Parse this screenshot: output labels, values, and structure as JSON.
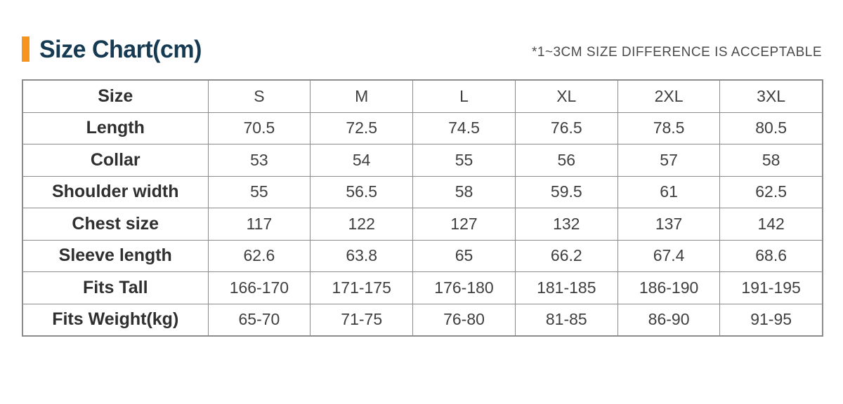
{
  "header": {
    "title": "Size Chart(cm)",
    "disclaimer": "*1~3CM SIZE DIFFERENCE IS ACCEPTABLE"
  },
  "colors": {
    "accent_orange": "#F7941E",
    "title_navy": "#163A52",
    "table_border_gray": "#8C8C8C",
    "body_text": "#3F3F3F"
  },
  "chart_data": {
    "type": "table",
    "title": "Size Chart(cm)",
    "corner_label": "Size",
    "columns": [
      "S",
      "M",
      "L",
      "XL",
      "2XL",
      "3XL"
    ],
    "rows": [
      {
        "label": "Length",
        "values": [
          "70.5",
          "72.5",
          "74.5",
          "76.5",
          "78.5",
          "80.5"
        ]
      },
      {
        "label": "Collar",
        "values": [
          "53",
          "54",
          "55",
          "56",
          "57",
          "58"
        ]
      },
      {
        "label": "Shoulder width",
        "values": [
          "55",
          "56.5",
          "58",
          "59.5",
          "61",
          "62.5"
        ]
      },
      {
        "label": "Chest size",
        "values": [
          "117",
          "122",
          "127",
          "132",
          "137",
          "142"
        ]
      },
      {
        "label": "Sleeve length",
        "values": [
          "62.6",
          "63.8",
          "65",
          "66.2",
          "67.4",
          "68.6"
        ]
      },
      {
        "label": "Fits Tall",
        "values": [
          "166-170",
          "171-175",
          "176-180",
          "181-185",
          "186-190",
          "191-195"
        ]
      },
      {
        "label": "Fits Weight(kg)",
        "values": [
          "65-70",
          "71-75",
          "76-80",
          "81-85",
          "86-90",
          "91-95"
        ]
      }
    ]
  }
}
